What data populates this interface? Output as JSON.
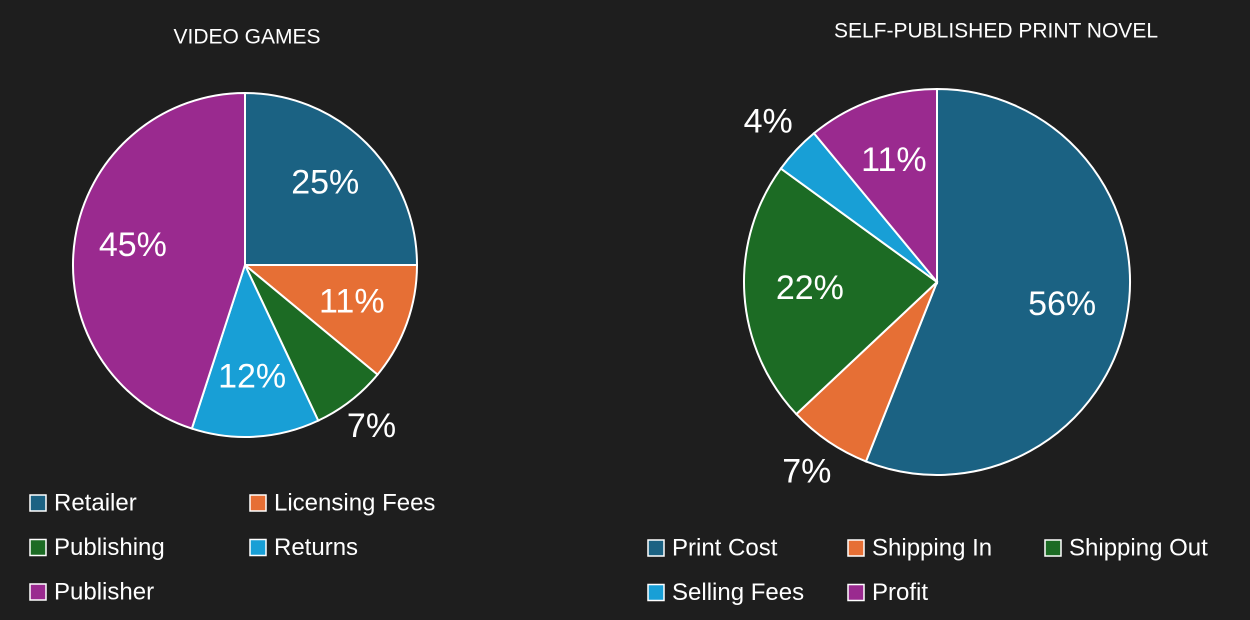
{
  "chart_data": [
    {
      "type": "pie",
      "title": "VIDEO GAMES",
      "categories": [
        "Retailer",
        "Licensing Fees",
        "Publishing",
        "Returns",
        "Publisher"
      ],
      "values": [
        25,
        11,
        7,
        12,
        45
      ],
      "value_labels": [
        "25%",
        "11%",
        "7%",
        "12%",
        "45%"
      ],
      "colors": [
        "#1b6283",
        "#e66f35",
        "#1c6b24",
        "#189fd6",
        "#9a2a8f"
      ]
    },
    {
      "type": "pie",
      "title": "SELF-PUBLISHED PRINT NOVEL",
      "categories": [
        "Print Cost",
        "Shipping In",
        "Shipping Out",
        "Selling Fees",
        "Profit"
      ],
      "values": [
        56,
        7,
        22,
        4,
        11
      ],
      "value_labels": [
        "56%",
        "7%",
        "22%",
        "4%",
        "11%"
      ],
      "colors": [
        "#1b6283",
        "#e66f35",
        "#1c6b24",
        "#189fd6",
        "#9a2a8f"
      ]
    }
  ]
}
